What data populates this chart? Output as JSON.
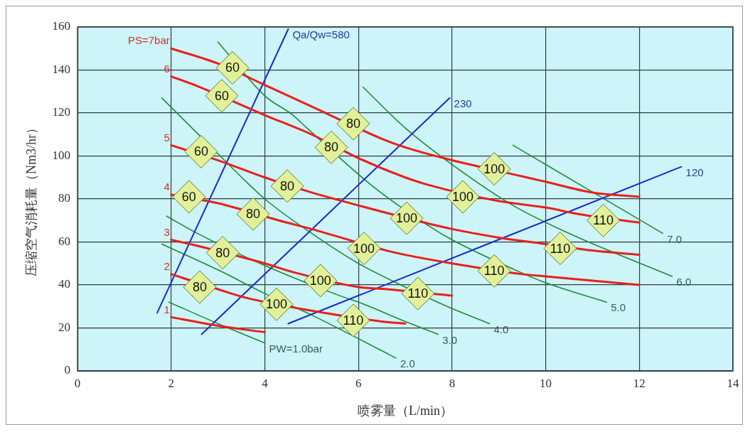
{
  "chart_data": {
    "type": "line",
    "xlabel": "喷雾量（L/min）",
    "ylabel": "压缩空气消耗量（Nm3/hr）",
    "xlim": [
      0,
      14
    ],
    "xticks": [
      0,
      2,
      4,
      6,
      8,
      10,
      12,
      14
    ],
    "ylim": [
      0,
      160
    ],
    "yticks": [
      0,
      20,
      40,
      60,
      80,
      100,
      120,
      140,
      160
    ],
    "grid": true,
    "legend": false,
    "marker": "none",
    "line_style": "solid",
    "series": [
      {
        "name": "PS=7bar",
        "color": "#e8201a",
        "x": [
          2,
          3,
          4,
          5,
          6.5,
          7,
          8,
          9.5,
          10,
          11,
          12
        ],
        "values": [
          150,
          143,
          133,
          123,
          108,
          104,
          98,
          90.5,
          88,
          83,
          81
        ]
      },
      {
        "name": "6",
        "color": "#e8201a",
        "x": [
          2,
          2.5,
          4,
          5,
          6,
          7,
          7.5,
          9,
          10,
          10.7,
          12
        ],
        "values": [
          137,
          133,
          119,
          110,
          99,
          90,
          86.5,
          79,
          76,
          73,
          69
        ]
      },
      {
        "name": "5",
        "color": "#e8201a",
        "x": [
          2,
          3,
          4,
          5,
          6,
          7.5,
          8,
          9,
          10,
          11,
          12
        ],
        "values": [
          105,
          98,
          90,
          83,
          77,
          68.5,
          66,
          62,
          59,
          56,
          54
        ]
      },
      {
        "name": "4",
        "color": "#e8201a",
        "x": [
          2,
          3,
          4.3,
          5,
          6.6,
          7,
          8,
          9.5,
          10,
          11,
          12
        ],
        "values": [
          82,
          78,
          70,
          66,
          56,
          54,
          50,
          45,
          44,
          42,
          40
        ]
      },
      {
        "name": "3",
        "color": "#e8201a",
        "x": [
          2,
          2.5,
          4,
          4.6,
          6,
          6.6,
          8
        ],
        "values": [
          61,
          58.5,
          50,
          46,
          39,
          38,
          35
        ]
      },
      {
        "name": "2",
        "color": "#e8201a",
        "x": [
          2,
          3,
          3.6,
          5,
          6.5,
          7
        ],
        "values": [
          45,
          38,
          34,
          28,
          23,
          22
        ]
      },
      {
        "name": "1",
        "color": "#e8201a",
        "x": [
          2,
          3,
          4
        ],
        "values": [
          25,
          21,
          18
        ]
      },
      {
        "name": "Qa/Qw=580",
        "color": "#1a2ad0",
        "x": [
          1.7,
          4.5
        ],
        "values": [
          27,
          159
        ]
      },
      {
        "name": "230",
        "color": "#1a2ad0",
        "x": [
          2.65,
          7.95
        ],
        "values": [
          17,
          127
        ]
      },
      {
        "name": "120",
        "color": "#1a2ad0",
        "x": [
          4.5,
          12.9
        ],
        "values": [
          22,
          95
        ]
      },
      {
        "name": "PW=1.0bar",
        "color": "#1f8a3a",
        "x": [
          1.95,
          3,
          4
        ],
        "values": [
          32,
          22,
          13
        ]
      },
      {
        "name": "2.0",
        "color": "#1f8a3a",
        "x": [
          1.8,
          3,
          4,
          5,
          6,
          6.8
        ],
        "values": [
          59,
          47,
          36,
          26,
          15,
          6
        ]
      },
      {
        "name": "3.0",
        "color": "#1f8a3a",
        "x": [
          1.9,
          2.6,
          4,
          5.6,
          6,
          7,
          7.7
        ],
        "values": [
          72,
          63.5,
          49,
          35,
          32,
          23,
          17
        ]
      },
      {
        "name": "4.0",
        "color": "#1f8a3a",
        "x": [
          1.8,
          3,
          4,
          5,
          6,
          7,
          8,
          8.8
        ],
        "values": [
          127,
          101,
          80,
          64,
          50,
          39,
          29,
          22
        ]
      },
      {
        "name": "5.0",
        "color": "#1f8a3a",
        "x": [
          3,
          4,
          4.6,
          4.9,
          6.3,
          7.5,
          8,
          9.5,
          10,
          11.3
        ],
        "values": [
          153,
          128,
          119,
          113,
          86,
          67.5,
          61,
          45.5,
          41,
          32
        ]
      },
      {
        "name": "6.0",
        "color": "#1f8a3a",
        "x": [
          6.1,
          7,
          8,
          9.3,
          10.5,
          12.7
        ],
        "values": [
          132,
          113,
          96,
          77,
          64,
          44
        ]
      },
      {
        "name": "7.0",
        "color": "#1f8a3a",
        "x": [
          9.3,
          12.5
        ],
        "values": [
          105,
          64
        ]
      }
    ],
    "annotations": [
      {
        "text": "60",
        "x": 3.31,
        "y": 141
      },
      {
        "text": "60",
        "x": 3.08,
        "y": 128
      },
      {
        "text": "60",
        "x": 2.64,
        "y": 102
      },
      {
        "text": "60",
        "x": 2.38,
        "y": 81
      },
      {
        "text": "80",
        "x": 5.89,
        "y": 115
      },
      {
        "text": "80",
        "x": 5.42,
        "y": 104
      },
      {
        "text": "80",
        "x": 4.48,
        "y": 86
      },
      {
        "text": "80",
        "x": 3.75,
        "y": 73
      },
      {
        "text": "80",
        "x": 3.1,
        "y": 55
      },
      {
        "text": "80",
        "x": 2.61,
        "y": 39
      },
      {
        "text": "100",
        "x": 8.9,
        "y": 94
      },
      {
        "text": "100",
        "x": 8.23,
        "y": 81
      },
      {
        "text": "100",
        "x": 7.03,
        "y": 71
      },
      {
        "text": "100",
        "x": 6.12,
        "y": 57
      },
      {
        "text": "100",
        "x": 5.19,
        "y": 42
      },
      {
        "text": "100",
        "x": 4.25,
        "y": 31
      },
      {
        "text": "110",
        "x": 11.23,
        "y": 70
      },
      {
        "text": "110",
        "x": 10.31,
        "y": 57
      },
      {
        "text": "110",
        "x": 8.9,
        "y": 46.5
      },
      {
        "text": "110",
        "x": 7.27,
        "y": 36
      },
      {
        "text": "110",
        "x": 5.89,
        "y": 23.5
      }
    ]
  }
}
